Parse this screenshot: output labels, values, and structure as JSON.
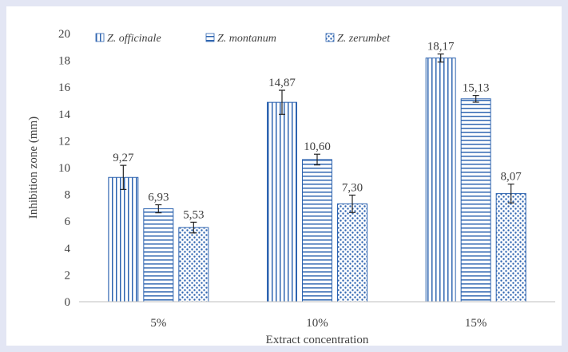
{
  "chart_data": {
    "type": "bar",
    "categories": [
      "5%",
      "10%",
      "15%"
    ],
    "series": [
      {
        "name": "Z. officinale",
        "values": [
          9.27,
          14.87,
          18.17
        ],
        "errors": [
          0.9,
          0.9,
          0.3
        ],
        "labels": [
          "9,27",
          "14,87",
          "18,17"
        ],
        "pattern": "vertical-lines"
      },
      {
        "name": "Z. montanum",
        "values": [
          6.93,
          10.6,
          15.13
        ],
        "errors": [
          0.3,
          0.4,
          0.25
        ],
        "labels": [
          "6,93",
          "10,60",
          "15,13"
        ],
        "pattern": "horizontal-lines"
      },
      {
        "name": "Z. zerumbet",
        "values": [
          5.53,
          7.3,
          8.07
        ],
        "errors": [
          0.4,
          0.65,
          0.7
        ],
        "labels": [
          "5,53",
          "7,30",
          "8,07"
        ],
        "pattern": "dots"
      }
    ],
    "xlabel": "Extract concentration",
    "ylabel": "Inhibition zone (mm)",
    "ylim": [
      0,
      20
    ],
    "yticks": [
      "0",
      "2",
      "4",
      "6",
      "8",
      "10",
      "12",
      "14",
      "16",
      "18",
      "20"
    ],
    "grid": false,
    "legend_position": "top",
    "colors": {
      "series": "#2e64b0",
      "text": "#404040",
      "axis": "#bfbfbf",
      "background": "#e3e6f4"
    }
  }
}
